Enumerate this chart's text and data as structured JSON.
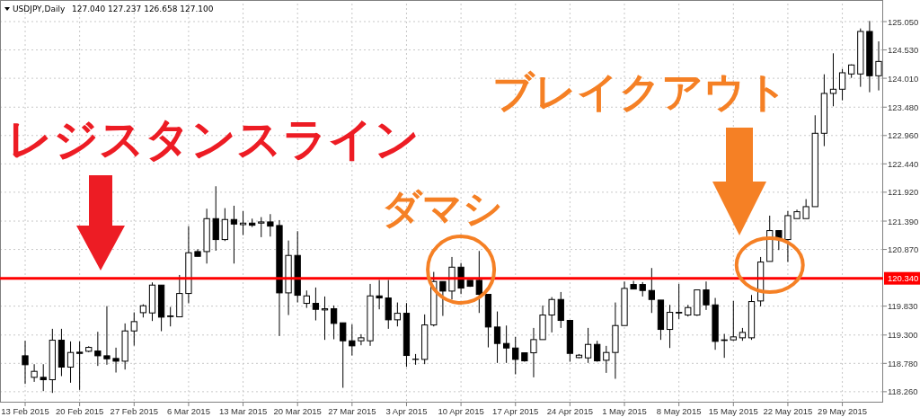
{
  "chart_data": {
    "type": "candlestick",
    "title": "USDJPY,Daily",
    "subtitle": "127.040 127.237 126.658 127.100",
    "categories": [
      "13 Feb 2015",
      null,
      null,
      null,
      null,
      null,
      "20 Feb 2015",
      null,
      null,
      null,
      null,
      null,
      "27 Feb 2015",
      null,
      null,
      null,
      null,
      null,
      "6 Mar 2015",
      null,
      null,
      null,
      null,
      null,
      "13 Mar 2015",
      null,
      null,
      null,
      null,
      null,
      "20 Mar 2015",
      null,
      null,
      null,
      null,
      null,
      "27 Mar 2015",
      null,
      null,
      null,
      null,
      null,
      "3 Apr 2015",
      null,
      null,
      null,
      null,
      null,
      "10 Apr 2015",
      null,
      null,
      null,
      null,
      null,
      "17 Apr 2015",
      null,
      null,
      null,
      null,
      null,
      "24 Apr 2015",
      null,
      null,
      null,
      null,
      null,
      "1 May 2015",
      null,
      null,
      null,
      null,
      null,
      "8 May 2015",
      null,
      null,
      null,
      null,
      null,
      "15 May 2015",
      null,
      null,
      null,
      null,
      null,
      "22 May 2015",
      null,
      null,
      null,
      null,
      null,
      "29 May 2015",
      null,
      null,
      null,
      null
    ],
    "ohlc": [
      [
        118.919,
        119.194,
        118.403,
        118.755
      ],
      [
        118.524,
        118.765,
        118.441,
        118.634
      ],
      [
        118.524,
        118.765,
        118.271,
        118.48
      ],
      [
        118.48,
        119.414,
        118.238,
        119.205
      ],
      [
        119.205,
        119.414,
        118.546,
        118.711
      ],
      [
        118.711,
        119.183,
        118.425,
        118.98
      ],
      [
        118.985,
        119.183,
        118.293,
        118.963
      ],
      [
        119.002,
        119.095,
        118.985,
        119.073
      ],
      [
        119.007,
        119.359,
        118.733,
        118.919
      ],
      [
        118.919,
        119.831,
        118.755,
        118.864
      ],
      [
        118.87,
        119.068,
        118.612,
        118.82
      ],
      [
        118.82,
        119.513,
        118.667,
        119.375
      ],
      [
        119.375,
        119.716,
        119.106,
        119.546
      ],
      [
        119.71,
        119.864,
        119.622,
        119.837
      ],
      [
        119.705,
        120.265,
        119.557,
        120.216
      ],
      [
        120.216,
        120.216,
        119.37,
        119.628
      ],
      [
        119.65,
        119.815,
        119.458,
        119.639
      ],
      [
        119.634,
        120.402,
        119.634,
        120.062
      ],
      [
        120.062,
        121.298,
        119.881,
        120.809
      ],
      [
        120.831,
        120.875,
        120.743,
        120.743
      ],
      [
        120.831,
        121.617,
        120.611,
        121.435
      ],
      [
        121.435,
        122.029,
        120.847,
        121.051
      ],
      [
        121.051,
        121.628,
        121.023,
        121.419
      ],
      [
        121.419,
        121.672,
        120.611,
        121.336
      ],
      [
        121.325,
        121.573,
        121.133,
        121.353
      ],
      [
        121.353,
        121.435,
        121.281,
        121.314
      ],
      [
        121.353,
        121.463,
        121.095,
        121.375
      ],
      [
        121.375,
        121.518,
        121.106,
        121.298
      ],
      [
        121.309,
        121.408,
        119.282,
        120.073
      ],
      [
        120.073,
        121.034,
        119.666,
        120.76
      ],
      [
        120.76,
        121.205,
        119.897,
        120.029
      ],
      [
        119.881,
        120.117,
        119.798,
        120.018
      ],
      [
        119.881,
        120.172,
        119.568,
        119.771
      ],
      [
        119.76,
        120.007,
        119.211,
        119.782
      ],
      [
        119.782,
        119.842,
        119.222,
        119.513
      ],
      [
        119.524,
        119.524,
        118.332,
        119.194
      ],
      [
        119.194,
        119.496,
        118.925,
        119.101
      ],
      [
        119.194,
        119.315,
        119.112,
        119.249
      ],
      [
        119.194,
        120.238,
        119.101,
        120.018
      ],
      [
        120.018,
        120.309,
        119.771,
        119.98
      ],
      [
        119.98,
        120.309,
        119.414,
        119.579
      ],
      [
        119.579,
        119.897,
        119.458,
        119.699
      ],
      [
        119.699,
        119.886,
        118.716,
        118.925
      ],
      [
        118.853,
        118.952,
        118.755,
        118.858
      ],
      [
        118.853,
        119.678,
        118.766,
        119.485
      ],
      [
        119.485,
        120.458,
        119.458,
        120.282
      ],
      [
        120.282,
        120.282,
        119.65,
        120.106
      ],
      [
        120.106,
        120.732,
        119.952,
        120.545
      ],
      [
        120.545,
        120.622,
        120.051,
        120.161
      ],
      [
        120.304,
        120.304,
        120.183,
        120.194
      ],
      [
        120.304,
        120.842,
        119.705,
        120.046
      ],
      [
        120.046,
        120.046,
        119.073,
        119.447
      ],
      [
        119.447,
        119.732,
        118.788,
        119.145
      ],
      [
        119.145,
        119.474,
        118.788,
        119.062
      ],
      [
        119.062,
        119.265,
        118.579,
        118.853
      ],
      [
        118.974,
        118.974,
        118.81,
        118.826
      ],
      [
        118.974,
        119.43,
        118.524,
        119.216
      ],
      [
        119.216,
        119.842,
        119.216,
        119.667
      ],
      [
        119.667,
        119.996,
        119.348,
        119.952
      ],
      [
        119.952,
        120.089,
        119.43,
        119.568
      ],
      [
        119.568,
        119.568,
        118.81,
        118.963
      ],
      [
        118.886,
        118.952,
        118.875,
        118.93
      ],
      [
        118.881,
        119.43,
        118.788,
        119.128
      ],
      [
        119.128,
        119.194,
        118.81,
        118.826
      ],
      [
        118.837,
        119.101,
        118.606,
        118.98
      ],
      [
        118.98,
        119.897,
        118.497,
        119.474
      ],
      [
        119.474,
        120.282,
        119.474,
        120.155
      ],
      [
        120.227,
        120.293,
        120.144,
        120.144
      ],
      [
        120.227,
        120.271,
        120.007,
        120.117
      ],
      [
        120.117,
        120.529,
        119.705,
        119.952
      ],
      [
        119.941,
        119.941,
        119.211,
        119.403
      ],
      [
        119.403,
        119.853,
        119.062,
        119.716
      ],
      [
        119.716,
        120.238,
        119.595,
        119.705
      ],
      [
        119.667,
        119.853,
        119.639,
        119.804
      ],
      [
        119.667,
        120.128,
        119.65,
        120.128
      ],
      [
        120.128,
        120.282,
        119.76,
        119.853
      ],
      [
        119.853,
        119.98,
        119.029,
        119.183
      ],
      [
        119.211,
        119.321,
        118.881,
        119.2
      ],
      [
        119.211,
        119.925,
        119.194,
        119.266
      ],
      [
        119.249,
        119.43,
        119.194,
        119.348
      ],
      [
        119.249,
        120.034,
        119.211,
        119.914
      ],
      [
        119.925,
        120.732,
        119.826,
        120.639
      ],
      [
        120.65,
        121.49,
        120.65,
        121.216
      ],
      [
        121.216,
        121.216,
        120.859,
        121.051
      ],
      [
        121.051,
        121.573,
        120.639,
        121.49
      ],
      [
        121.436,
        121.6,
        121.436,
        121.562
      ],
      [
        121.436,
        121.793,
        121.436,
        121.655
      ],
      [
        121.655,
        123.331,
        121.655,
        123.001
      ],
      [
        123.001,
        124.083,
        122.765,
        123.732
      ],
      [
        123.732,
        124.468,
        123.496,
        123.809
      ],
      [
        123.809,
        124.182,
        123.605,
        124.111
      ],
      [
        124.089,
        124.265,
        124.017,
        124.254
      ],
      [
        124.089,
        124.924,
        123.853,
        124.869
      ],
      [
        124.869,
        125.061,
        123.754,
        124.056
      ],
      [
        124.056,
        124.687,
        123.787,
        124.319
      ]
    ],
    "ylim": [
      118.06,
      125.38
    ],
    "yticks": [
      {
        "value": 118.26,
        "label": "118.260"
      },
      {
        "value": 118.78,
        "label": "118.780"
      },
      {
        "value": 119.3,
        "label": "119.300"
      },
      {
        "value": 119.83,
        "label": "119.830"
      },
      {
        "value": 120.87,
        "label": "120.870"
      },
      {
        "value": 121.39,
        "label": "121.390"
      },
      {
        "value": 121.92,
        "label": "121.920"
      },
      {
        "value": 122.44,
        "label": "122.440"
      },
      {
        "value": 122.96,
        "label": "122.960"
      },
      {
        "value": 123.48,
        "label": "123.480"
      },
      {
        "value": 124.01,
        "label": "124.010"
      },
      {
        "value": 124.53,
        "label": "124.530"
      },
      {
        "value": 125.05,
        "label": "125.050"
      }
    ],
    "ref_lines": [
      {
        "axis": "y",
        "value": 120.34,
        "label": "120.340",
        "color": "#ff0000"
      }
    ],
    "annotations": [
      "レジスタンスライン",
      "ダマシ",
      "ブレイクアウト"
    ],
    "grid": true
  }
}
